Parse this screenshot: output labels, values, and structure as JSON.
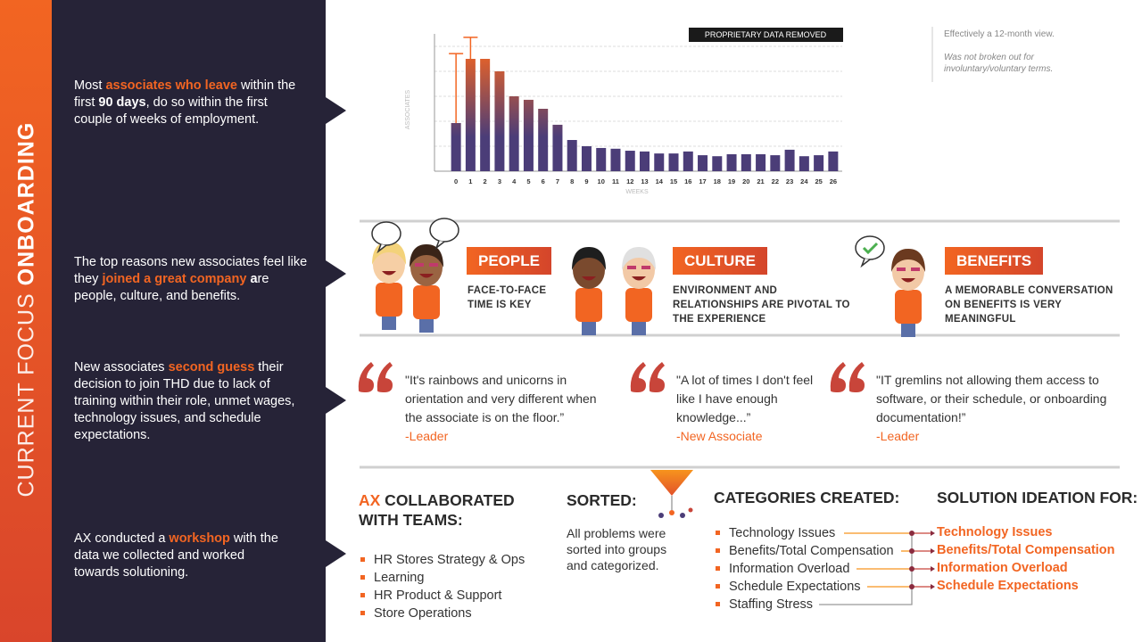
{
  "sidebar": {
    "title_light": "CURRENT FOCUS",
    "title_bold": "ONBOARDING"
  },
  "insights": [
    {
      "segments": [
        {
          "text": "Most "
        },
        {
          "text": "associates who leave",
          "style": "orange"
        },
        {
          "text": " within the first "
        },
        {
          "text": "90 days",
          "style": "bold"
        },
        {
          "text": ", do so within the first couple of weeks of employment."
        }
      ]
    },
    {
      "segments": [
        {
          "text": "The top reasons new associates feel like they "
        },
        {
          "text": "joined a great company",
          "style": "orange"
        },
        {
          "text": " "
        },
        {
          "text": "a",
          "style": "bold"
        },
        {
          "text": "re people, culture, and benefits."
        }
      ]
    },
    {
      "segments": [
        {
          "text": "New associates "
        },
        {
          "text": "second guess",
          "style": "orange"
        },
        {
          "text": " their decision to join THD due to lack of training within their role, unmet wages, technology issues, and schedule expectations."
        }
      ]
    },
    {
      "segments": [
        {
          "text": "AX conducted a "
        },
        {
          "text": "workshop",
          "style": "orange"
        },
        {
          "text": " with the data we collected and worked towards solutioning."
        }
      ]
    }
  ],
  "chart_data": {
    "type": "bar",
    "badge": "PROPRIETARY DATA REMOVED",
    "y_label": "ASSOCIATES",
    "x_label": "WEEKS",
    "categories": [
      "0",
      "1",
      "2",
      "3",
      "4",
      "5",
      "6",
      "7",
      "8",
      "9",
      "10",
      "11",
      "12",
      "13",
      "14",
      "15",
      "16",
      "17",
      "18",
      "19",
      "20",
      "21",
      "22",
      "23",
      "24",
      "25",
      "26"
    ],
    "values": [
      1.93,
      4.5,
      4.5,
      4.0,
      3.0,
      2.86,
      2.5,
      1.86,
      1.25,
      1.0,
      0.93,
      0.9,
      0.82,
      0.79,
      0.71,
      0.71,
      0.79,
      0.64,
      0.6,
      0.68,
      0.68,
      0.68,
      0.64,
      0.86,
      0.6,
      0.64,
      0.79
    ],
    "errors": [
      2.78,
      0.86,
      null,
      null,
      null,
      null,
      null,
      null,
      null,
      null,
      null,
      null,
      null,
      null,
      null,
      null,
      null,
      null,
      null,
      null,
      null,
      null,
      null,
      null,
      null,
      null,
      null
    ],
    "ylim": [
      0,
      5.5
    ],
    "gradient": {
      "top": "#f26522",
      "bottom": "#4b3d78"
    },
    "error_color": "#f26522"
  },
  "notes": [
    "Effectively a 12-month view.",
    "Was not broken out for involuntary/voluntary terms."
  ],
  "reasons": [
    {
      "label": "PEOPLE",
      "description": "FACE-TO-FACE TIME IS KEY"
    },
    {
      "label": "CULTURE",
      "description": "ENVIRONMENT AND RELATIONSHIPS ARE PIVOTAL TO THE EXPERIENCE"
    },
    {
      "label": "BENEFITS",
      "description": "A MEMORABLE CONVERSATION ON BENEFITS IS VERY MEANINGFUL"
    }
  ],
  "quotes": [
    {
      "text": "\"It's rainbows and unicorns in orientation and very different when the associate is on the floor.”",
      "author": "-Leader"
    },
    {
      "text": "\"A lot of times I don't feel like I have enough knowledge...”",
      "author": "-New Associate"
    },
    {
      "text": "\"IT gremlins not allowing them access to software, or their schedule, or onboarding documentation!”",
      "author": "-Leader"
    }
  ],
  "collaboration": {
    "heading": [
      {
        "text": "AX",
        "style": "orange"
      },
      {
        "text": " COLLABORATED WITH TEAMS:"
      }
    ],
    "items": [
      "HR Stores Strategy & Ops",
      "Learning",
      "HR Product & Support",
      "Store Operations"
    ]
  },
  "sorted": {
    "heading": "SORTED:",
    "text": "All problems were sorted into groups and categorized."
  },
  "categories": {
    "heading": "CATEGORIES CREATED:",
    "items": [
      "Technology Issues",
      "Benefits/Total Compensation",
      "Information Overload",
      "Schedule Expectations",
      "Staffing Stress"
    ]
  },
  "solutions": {
    "heading": "SOLUTION IDEATION FOR:",
    "items": [
      "Technology Issues",
      "Benefits/Total Compensation",
      "Information Overload",
      "Schedule Expectations"
    ]
  }
}
